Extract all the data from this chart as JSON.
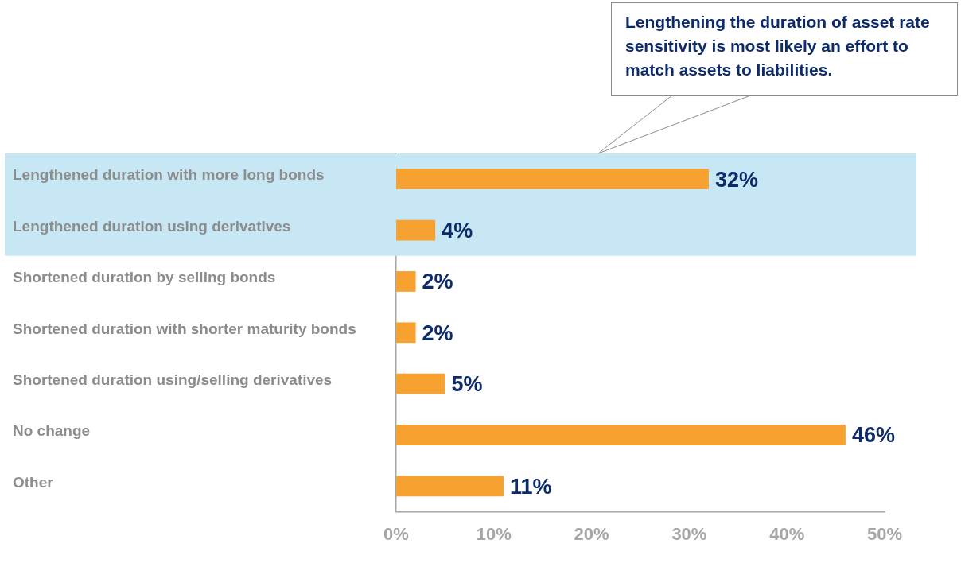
{
  "chart_data": {
    "type": "bar",
    "orientation": "horizontal",
    "categories": [
      "Lengthened duration with more long bonds",
      "Lengthened duration using derivatives",
      "Shortened duration by selling bonds",
      "Shortened duration with shorter maturity bonds",
      "Shortened duration using/selling derivatives",
      "No change",
      "Other"
    ],
    "values": [
      32,
      4,
      2,
      2,
      5,
      46,
      11
    ],
    "value_labels": [
      "32%",
      "4%",
      "2%",
      "2%",
      "5%",
      "46%",
      "11%"
    ],
    "color": "#f7a130",
    "xlim": [
      0,
      50
    ],
    "xticks": [
      {
        "value": 0,
        "label": "0%"
      },
      {
        "value": 10,
        "label": "10%"
      },
      {
        "value": 20,
        "label": "20%"
      },
      {
        "value": 30,
        "label": "30%"
      },
      {
        "value": 40,
        "label": "40%"
      },
      {
        "value": 50,
        "label": "50%"
      }
    ],
    "bands": [
      {
        "axis": "y",
        "from": "Lengthened duration with more long bonds",
        "to": "Lengthened duration using derivatives",
        "color": "#c6e7f3"
      }
    ],
    "annotations": [
      "Lengthening the duration of asset rate sensitivity is most likely an effort to match assets to liabilities."
    ]
  }
}
